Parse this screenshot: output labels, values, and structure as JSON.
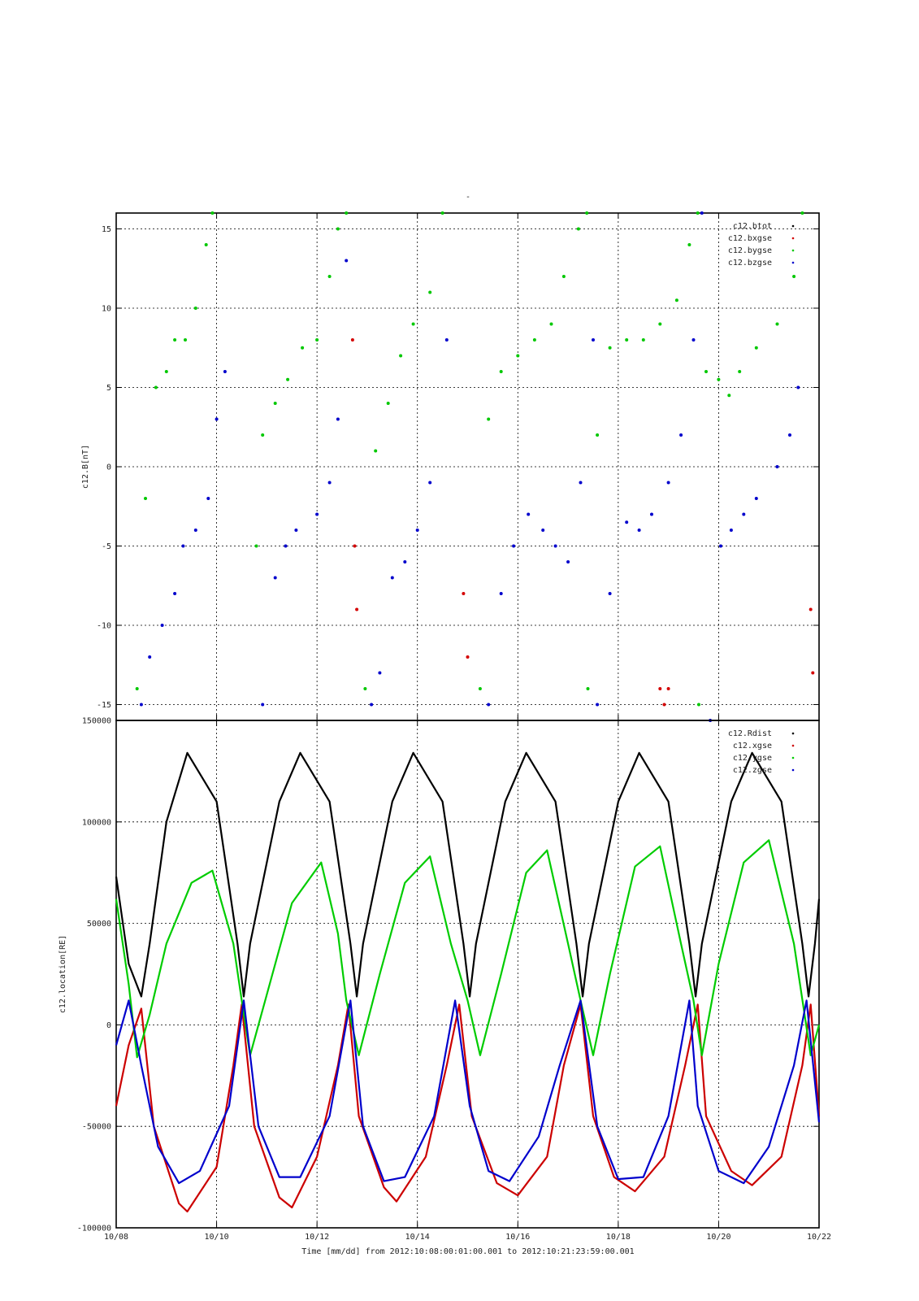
{
  "page": {
    "title_mark": "-"
  },
  "colors": {
    "btot": "#000000",
    "bxgse": "#d40000",
    "bygse": "#00c800",
    "bzgse": "#0000cc",
    "Rdist": "#000000",
    "xgse": "#cc0000",
    "ygse": "#00cc00",
    "zgse": "#0000cc"
  },
  "xaxis": {
    "ticks": [
      "10/08",
      "10/10",
      "10/12",
      "10/14",
      "10/16",
      "10/18",
      "10/20",
      "10/22"
    ],
    "label": "Time [mm/dd]  from 2012:10:08:00:01:00.001  to  2012:10:21:23:59:00.001"
  },
  "chart_data": [
    {
      "type": "scatter",
      "ylabel": "c12.B[nT]",
      "xlim": [
        "2012-10-08",
        "2012-10-22"
      ],
      "ylim": [
        -16,
        16
      ],
      "yticks": [
        -15,
        -10,
        -5,
        0,
        5,
        10,
        15
      ],
      "grid": true,
      "legend_position": "top-right",
      "series": [
        {
          "name": "c12.btot",
          "color": "#000000",
          "x": [],
          "y": []
        },
        {
          "name": "c12.bxgse",
          "color": "#d40000",
          "x": [
            "2012-10-12 17:00",
            "2012-10-12 18:00",
            "2012-10-12 19:00",
            "2012-10-14 22:00",
            "2012-10-15 00:00",
            "2012-10-18 20:00",
            "2012-10-18 22:00",
            "2012-10-19 00:00",
            "2012-10-21 20:00",
            "2012-10-21 21:00"
          ],
          "y": [
            8,
            -5,
            -9,
            -8,
            -12,
            -14,
            -15,
            -14,
            -9,
            -13
          ]
        },
        {
          "name": "c12.bygse",
          "color": "#00c800",
          "x": [
            "2012-10-08 10:00",
            "2012-10-08 14:00",
            "2012-10-08 19:00",
            "2012-10-09 00:00",
            "2012-10-09 04:00",
            "2012-10-09 09:00",
            "2012-10-09 14:00",
            "2012-10-09 19:00",
            "2012-10-09 22:00",
            "2012-10-10 19:00",
            "2012-10-10 22:00",
            "2012-10-11 04:00",
            "2012-10-11 10:00",
            "2012-10-11 17:00",
            "2012-10-12 00:00",
            "2012-10-12 06:00",
            "2012-10-12 10:00",
            "2012-10-12 14:00",
            "2012-10-12 23:00",
            "2012-10-13 04:00",
            "2012-10-13 10:00",
            "2012-10-13 16:00",
            "2012-10-13 22:00",
            "2012-10-14 06:00",
            "2012-10-14 12:00",
            "2012-10-15 06:00",
            "2012-10-15 10:00",
            "2012-10-15 16:00",
            "2012-10-16 00:00",
            "2012-10-16 08:00",
            "2012-10-16 16:00",
            "2012-10-16 22:00",
            "2012-10-17 05:00",
            "2012-10-17 09:00",
            "2012-10-17 09:30",
            "2012-10-17 14:00",
            "2012-10-17 20:00",
            "2012-10-18 04:00",
            "2012-10-18 12:00",
            "2012-10-18 20:00",
            "2012-10-19 04:00",
            "2012-10-19 10:00",
            "2012-10-19 14:00",
            "2012-10-19 14:30",
            "2012-10-19 18:00",
            "2012-10-20 00:00",
            "2012-10-20 05:00",
            "2012-10-20 10:00",
            "2012-10-20 18:00",
            "2012-10-21 04:00",
            "2012-10-21 12:00",
            "2012-10-21 16:00"
          ],
          "y": [
            -14,
            -2,
            5,
            6,
            8,
            8,
            10,
            14,
            16,
            -5,
            2,
            4,
            5.5,
            7.5,
            8,
            12,
            15,
            16,
            -14,
            1,
            4,
            7,
            9,
            11,
            16,
            -14,
            3,
            6,
            7,
            8,
            9,
            12,
            15,
            16,
            -14,
            2,
            7.5,
            8,
            8,
            9,
            10.5,
            14,
            16,
            -15,
            6,
            5.5,
            4.5,
            6,
            7.5,
            9,
            12,
            16
          ]
        },
        {
          "name": "c12.bzgse",
          "color": "#0000cc",
          "x": [
            "2012-10-08 12:00",
            "2012-10-08 16:00",
            "2012-10-08 22:00",
            "2012-10-09 04:00",
            "2012-10-09 08:00",
            "2012-10-09 14:00",
            "2012-10-09 20:00",
            "2012-10-10 00:00",
            "2012-10-10 04:00",
            "2012-10-10 22:00",
            "2012-10-11 04:00",
            "2012-10-11 09:00",
            "2012-10-11 14:00",
            "2012-10-12 00:00",
            "2012-10-12 06:00",
            "2012-10-12 10:00",
            "2012-10-12 14:00",
            "2012-10-13 02:00",
            "2012-10-13 06:00",
            "2012-10-13 12:00",
            "2012-10-13 18:00",
            "2012-10-14 00:00",
            "2012-10-14 06:00",
            "2012-10-14 14:00",
            "2012-10-15 10:00",
            "2012-10-15 16:00",
            "2012-10-15 22:00",
            "2012-10-16 05:00",
            "2012-10-16 12:00",
            "2012-10-16 18:00",
            "2012-10-17 00:00",
            "2012-10-17 06:00",
            "2012-10-17 12:00",
            "2012-10-17 14:00",
            "2012-10-17 20:00",
            "2012-10-18 04:00",
            "2012-10-18 10:00",
            "2012-10-18 16:00",
            "2012-10-19 00:00",
            "2012-10-19 06:00",
            "2012-10-19 12:00",
            "2012-10-19 16:00",
            "2012-10-19 20:00",
            "2012-10-20 01:00",
            "2012-10-20 06:00",
            "2012-10-20 12:00",
            "2012-10-20 18:00",
            "2012-10-21 04:00",
            "2012-10-21 10:00",
            "2012-10-21 14:00"
          ],
          "y": [
            -15,
            -12,
            -10,
            -8,
            -5,
            -4,
            -2,
            3,
            6,
            -15,
            -7,
            -5,
            -4,
            -3,
            -1,
            3,
            13,
            -15,
            -13,
            -7,
            -6,
            -4,
            -1,
            8,
            -15,
            -8,
            -5,
            -3,
            -4,
            -5,
            -6,
            -1,
            8,
            -15,
            -8,
            -3.5,
            -4,
            -3,
            -1,
            2,
            8,
            16,
            -16,
            -5,
            -4,
            -3,
            -2,
            0,
            2,
            5
          ]
        }
      ]
    },
    {
      "type": "line",
      "ylabel": "c12.location[RE]",
      "xlim": [
        "2012-10-08",
        "2012-10-22"
      ],
      "ylim": [
        -100000,
        150000
      ],
      "yticks": [
        -100000,
        -50000,
        0,
        50000,
        100000,
        150000
      ],
      "grid": true,
      "legend_position": "top-right",
      "series": [
        {
          "name": "c12.Rdist",
          "color": "#000000",
          "x": [
            "2012-10-08 00:00",
            "2012-10-08 06:00",
            "2012-10-08 12:00",
            "2012-10-08 16:00",
            "2012-10-09 00:00",
            "2012-10-09 10:00",
            "2012-10-10 00:00",
            "2012-10-10 10:00",
            "2012-10-10 13:00",
            "2012-10-10 16:00",
            "2012-10-11 06:00",
            "2012-10-11 16:00",
            "2012-10-12 06:00",
            "2012-10-12 16:00",
            "2012-10-12 19:00",
            "2012-10-12 22:00",
            "2012-10-13 12:00",
            "2012-10-13 22:00",
            "2012-10-14 12:00",
            "2012-10-14 22:00",
            "2012-10-15 01:00",
            "2012-10-15 04:00",
            "2012-10-15 18:00",
            "2012-10-16 04:00",
            "2012-10-16 18:00",
            "2012-10-17 04:00",
            "2012-10-17 07:00",
            "2012-10-17 10:00",
            "2012-10-18 00:00",
            "2012-10-18 10:00",
            "2012-10-19 00:00",
            "2012-10-19 10:00",
            "2012-10-19 13:00",
            "2012-10-19 16:00",
            "2012-10-20 06:00",
            "2012-10-20 16:00",
            "2012-10-21 06:00",
            "2012-10-21 16:00",
            "2012-10-21 19:00",
            "2012-10-21 22:00",
            "2012-10-22 00:00"
          ],
          "y": [
            73000,
            30000,
            14000,
            40000,
            100000,
            134000,
            110000,
            40000,
            14000,
            40000,
            110000,
            134000,
            110000,
            40000,
            14000,
            40000,
            110000,
            134000,
            110000,
            40000,
            14000,
            40000,
            110000,
            134000,
            110000,
            40000,
            14000,
            40000,
            110000,
            134000,
            110000,
            40000,
            14000,
            40000,
            110000,
            134000,
            110000,
            40000,
            14000,
            40000,
            62000
          ]
        },
        {
          "name": "c12.xgse",
          "color": "#cc0000",
          "x": [
            "2012-10-08 00:00",
            "2012-10-08 06:00",
            "2012-10-08 12:00",
            "2012-10-08 18:00",
            "2012-10-09 06:00",
            "2012-10-09 10:00",
            "2012-10-10 00:00",
            "2012-10-10 08:00",
            "2012-10-10 12:00",
            "2012-10-10 18:00",
            "2012-10-11 06:00",
            "2012-10-11 12:00",
            "2012-10-12 00:00",
            "2012-10-12 10:00",
            "2012-10-12 15:00",
            "2012-10-12 20:00",
            "2012-10-13 08:00",
            "2012-10-13 14:00",
            "2012-10-14 04:00",
            "2012-10-14 14:00",
            "2012-10-14 20:00",
            "2012-10-15 02:00",
            "2012-10-15 14:00",
            "2012-10-16 00:00",
            "2012-10-16 14:00",
            "2012-10-16 22:00",
            "2012-10-17 06:00",
            "2012-10-17 12:00",
            "2012-10-17 22:00",
            "2012-10-18 08:00",
            "2012-10-18 22:00",
            "2012-10-19 08:00",
            "2012-10-19 14:00",
            "2012-10-19 18:00",
            "2012-10-20 06:00",
            "2012-10-20 16:00",
            "2012-10-21 06:00",
            "2012-10-21 16:00",
            "2012-10-21 20:00",
            "2012-10-22 00:00"
          ],
          "y": [
            -40000,
            -10000,
            8000,
            -50000,
            -88000,
            -92000,
            -70000,
            -20000,
            10000,
            -50000,
            -85000,
            -90000,
            -65000,
            -20000,
            10000,
            -45000,
            -80000,
            -87000,
            -65000,
            -20000,
            10000,
            -45000,
            -78000,
            -84000,
            -65000,
            -20000,
            10000,
            -45000,
            -75000,
            -82000,
            -65000,
            -20000,
            10000,
            -45000,
            -72000,
            -79000,
            -65000,
            -20000,
            10000,
            -45000
          ]
        },
        {
          "name": "c12.ygse",
          "color": "#00cc00",
          "x": [
            "2012-10-08 00:00",
            "2012-10-08 06:00",
            "2012-10-08 10:00",
            "2012-10-08 16:00",
            "2012-10-09 00:00",
            "2012-10-09 12:00",
            "2012-10-09 22:00",
            "2012-10-10 08:00",
            "2012-10-10 12:00",
            "2012-10-10 16:00",
            "2012-10-11 00:00",
            "2012-10-11 12:00",
            "2012-10-12 02:00",
            "2012-10-12 10:00",
            "2012-10-12 14:00",
            "2012-10-12 20:00",
            "2012-10-13 06:00",
            "2012-10-13 18:00",
            "2012-10-14 06:00",
            "2012-10-14 16:00",
            "2012-10-15 00:00",
            "2012-10-15 06:00",
            "2012-10-15 16:00",
            "2012-10-16 04:00",
            "2012-10-16 14:00",
            "2012-10-17 00:00",
            "2012-10-17 06:00",
            "2012-10-17 12:00",
            "2012-10-17 20:00",
            "2012-10-18 08:00",
            "2012-10-18 20:00",
            "2012-10-19 06:00",
            "2012-10-19 12:00",
            "2012-10-19 16:00",
            "2012-10-20 00:00",
            "2012-10-20 12:00",
            "2012-10-21 00:00",
            "2012-10-21 12:00",
            "2012-10-21 20:00",
            "2012-10-22 00:00"
          ],
          "y": [
            62000,
            20000,
            -16000,
            5000,
            40000,
            70000,
            76000,
            40000,
            12000,
            -15000,
            15000,
            60000,
            80000,
            45000,
            12000,
            -15000,
            25000,
            70000,
            83000,
            40000,
            12000,
            -15000,
            25000,
            75000,
            86000,
            40000,
            12000,
            -15000,
            25000,
            78000,
            88000,
            40000,
            12000,
            -15000,
            30000,
            80000,
            91000,
            40000,
            -15000,
            0
          ]
        },
        {
          "name": "c12.zgse",
          "color": "#0000cc",
          "x": [
            "2012-10-08 00:00",
            "2012-10-08 06:00",
            "2012-10-08 12:00",
            "2012-10-08 20:00",
            "2012-10-09 06:00",
            "2012-10-09 16:00",
            "2012-10-10 06:00",
            "2012-10-10 13:00",
            "2012-10-10 20:00",
            "2012-10-11 06:00",
            "2012-10-11 16:00",
            "2012-10-12 06:00",
            "2012-10-12 16:00",
            "2012-10-12 22:00",
            "2012-10-13 08:00",
            "2012-10-13 18:00",
            "2012-10-14 08:00",
            "2012-10-14 18:00",
            "2012-10-15 01:00",
            "2012-10-15 10:00",
            "2012-10-15 20:00",
            "2012-10-16 10:00",
            "2012-10-16 20:00",
            "2012-10-17 06:00",
            "2012-10-17 14:00",
            "2012-10-18 00:00",
            "2012-10-18 12:00",
            "2012-10-19 00:00",
            "2012-10-19 10:00",
            "2012-10-19 14:00",
            "2012-10-20 00:00",
            "2012-10-20 12:00",
            "2012-10-21 00:00",
            "2012-10-21 12:00",
            "2012-10-21 18:00",
            "2012-10-22 00:00"
          ],
          "y": [
            -10000,
            12000,
            -20000,
            -60000,
            -78000,
            -72000,
            -40000,
            12000,
            -50000,
            -75000,
            -75000,
            -45000,
            12000,
            -50000,
            -77000,
            -75000,
            -45000,
            12000,
            -40000,
            -72000,
            -77000,
            -55000,
            -20000,
            12000,
            -50000,
            -76000,
            -75000,
            -45000,
            12000,
            -40000,
            -72000,
            -78000,
            -60000,
            -20000,
            12000,
            -48000
          ]
        }
      ]
    }
  ]
}
